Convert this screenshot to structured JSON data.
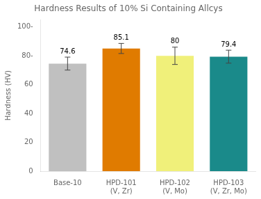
{
  "chart_data": {
    "type": "bar",
    "title": "Hardness Results of 10% Si Containing Allcys",
    "ylabel": "Hardness (HV)",
    "categories": [
      "Base-10",
      "HPD-101\n(V, Zr)",
      "HPD-102\n(V, Mo)",
      "HPD-103\n(V, Zr, Mo)"
    ],
    "values": [
      74.6,
      85.1,
      80,
      79.4
    ],
    "errors": [
      4.5,
      3.5,
      6.0,
      4.5
    ],
    "colors": [
      "#c0c0c0",
      "#e07b00",
      "#f0f07a",
      "#1a8a8a"
    ],
    "ylim": [
      0,
      105
    ],
    "yticks": [
      0,
      20,
      40,
      60,
      {
        "value": 80,
        "label": "80-"
      },
      {
        "value": 100,
        "label": "100-"
      }
    ],
    "grid": false,
    "data_labels": true
  }
}
